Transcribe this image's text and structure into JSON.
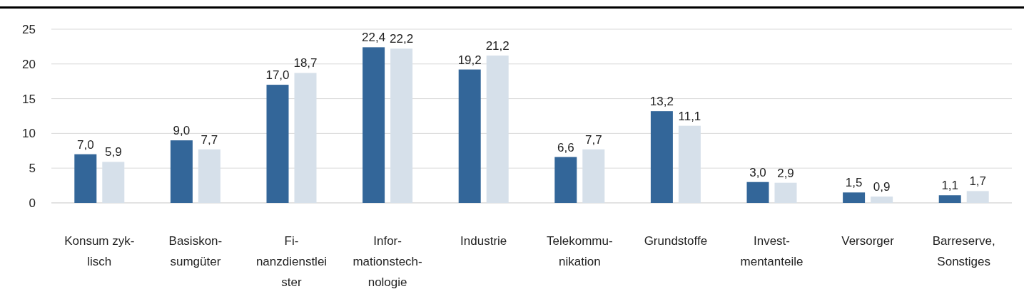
{
  "chart_data": {
    "type": "bar",
    "categories": [
      "Konsum zyk-\nlisch",
      "Basiskon-\nsumgüter",
      "Fi-\nnanzdienstlei\nster",
      "Infor-\nmationstech-\nnologie",
      "Industrie",
      "Telekommu-\nnikation",
      "Grundstoffe",
      "Invest-\nmentanteile",
      "Versorger",
      "Barreserve,\nSonstiges"
    ],
    "series": [
      {
        "color": "#336699",
        "values": [
          7.0,
          9.0,
          17.0,
          22.4,
          19.2,
          6.6,
          13.2,
          3.0,
          1.5,
          1.1
        ],
        "value_labels": [
          "7,0",
          "9,0",
          "17,0",
          "22,4",
          "19,2",
          "6,6",
          "13,2",
          "3,0",
          "1,5",
          "1,1"
        ]
      },
      {
        "color": "#d6e0ea",
        "values": [
          5.9,
          7.7,
          18.7,
          22.2,
          21.2,
          7.7,
          11.1,
          2.9,
          0.9,
          1.7
        ],
        "value_labels": [
          "5,9",
          "7,7",
          "18,7",
          "22,2",
          "21,2",
          "7,7",
          "11,1",
          "2,9",
          "0,9",
          "1,7"
        ]
      }
    ],
    "ylim": [
      0,
      25
    ],
    "yticks": [
      0,
      5,
      10,
      15,
      20,
      25
    ],
    "grid": "y"
  }
}
